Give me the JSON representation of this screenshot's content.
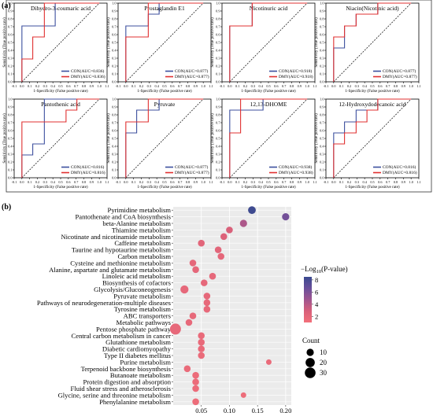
{
  "panel_a_label": "(a)",
  "panel_b_label": "(b)",
  "chart_data": [
    {
      "type": "line",
      "title": "Dihydro-3-coumaric acid",
      "xlabel": "1-Specificity (False positive rate)",
      "ylabel": "Sensitivity (True positive rate)",
      "xlim": [
        -0.1,
        1.1
      ],
      "ylim": [
        0,
        1
      ],
      "x_ticks": [
        "-0.1",
        "0.0",
        "0.1",
        "0.2",
        "0.3",
        "0.4",
        "0.5",
        "0.6",
        "0.7",
        "0.8",
        "0.9",
        "1.0",
        "1.1"
      ],
      "y_ticks": [
        "0.0",
        "0.1",
        "0.2",
        "0.3",
        "0.4",
        "0.5",
        "0.6",
        "0.7",
        "0.8",
        "0.9",
        "1.0"
      ],
      "series": [
        {
          "name": "CON(AUC=0.836)",
          "color": "#3c4f9e",
          "points": [
            [
              0,
              0
            ],
            [
              0,
              0.71
            ],
            [
              0.43,
              0.71
            ],
            [
              0.43,
              1
            ],
            [
              1,
              1
            ]
          ]
        },
        {
          "name": "DMY(AUC=0.836)",
          "color": "#e03030",
          "points": [
            [
              0,
              0
            ],
            [
              0,
              0.29
            ],
            [
              0.14,
              0.29
            ],
            [
              0.14,
              0.57
            ],
            [
              0.29,
              0.57
            ],
            [
              0.29,
              0.86
            ],
            [
              0.29,
              1
            ],
            [
              1,
              1
            ]
          ]
        }
      ]
    },
    {
      "type": "line",
      "title": "Prostaglandin E1",
      "xlabel": "1-Specificity (False positive rate)",
      "ylabel": "Sensitivity (True positive rate)",
      "xlim": [
        -0.1,
        1.1
      ],
      "ylim": [
        0,
        1
      ],
      "x_ticks": [
        "-0.1",
        "0.0",
        "0.1",
        "0.2",
        "0.3",
        "0.4",
        "0.5",
        "0.6",
        "0.7",
        "0.8",
        "0.9",
        "1.0",
        "1.1"
      ],
      "y_ticks": [
        "0.0",
        "0.1",
        "0.2",
        "0.3",
        "0.4",
        "0.5",
        "0.6",
        "0.7",
        "0.8",
        "0.9",
        "1.0"
      ],
      "series": [
        {
          "name": "CON(AUC=0.877)",
          "color": "#3c4f9e",
          "points": [
            [
              0,
              0
            ],
            [
              0,
              0.71
            ],
            [
              0.29,
              0.71
            ],
            [
              0.29,
              0.86
            ],
            [
              0.43,
              0.86
            ],
            [
              0.43,
              1
            ],
            [
              1,
              1
            ]
          ]
        },
        {
          "name": "DMY(AUC=0.877)",
          "color": "#e03030",
          "points": [
            [
              0,
              0
            ],
            [
              0,
              0.57
            ],
            [
              0.29,
              0.57
            ],
            [
              0.29,
              1
            ],
            [
              1,
              1
            ]
          ]
        }
      ]
    },
    {
      "type": "line",
      "title": "Nicotinuric acid",
      "xlabel": "1-Specificity (False positive rate)",
      "ylabel": "Sensitivity (True positive rate)",
      "xlim": [
        -0.1,
        1.1
      ],
      "ylim": [
        0,
        1
      ],
      "x_ticks": [
        "-0.1",
        "0.0",
        "0.1",
        "0.2",
        "0.3",
        "0.4",
        "0.5",
        "0.6",
        "0.7",
        "0.8",
        "0.9",
        "1.0",
        "1.1"
      ],
      "y_ticks": [
        "0.0",
        "0.1",
        "0.2",
        "0.3",
        "0.4",
        "0.5",
        "0.6",
        "0.7",
        "0.8",
        "0.9",
        "1.0"
      ],
      "series": [
        {
          "name": "CON(AUC=0.918)",
          "color": "#3c4f9e",
          "points": [
            [
              0,
              0
            ],
            [
              0,
              0.71
            ],
            [
              0.29,
              0.71
            ],
            [
              0.29,
              1
            ],
            [
              1,
              1
            ]
          ]
        },
        {
          "name": "DMY(AUC=0.918)",
          "color": "#e03030",
          "points": [
            [
              0,
              0
            ],
            [
              0,
              0.71
            ],
            [
              0.29,
              0.71
            ],
            [
              0.29,
              1
            ],
            [
              1,
              1
            ]
          ]
        }
      ]
    },
    {
      "type": "line",
      "title": "Niacin(Nicotinic acid)",
      "xlabel": "1-Specificity (False positive rate)",
      "ylabel": "Sensitivity (True positive rate)",
      "xlim": [
        -0.1,
        1.1
      ],
      "ylim": [
        0,
        1
      ],
      "x_ticks": [
        "-0.1",
        "0.0",
        "0.1",
        "0.2",
        "0.3",
        "0.4",
        "0.5",
        "0.6",
        "0.7",
        "0.8",
        "0.9",
        "1.0",
        "1.1"
      ],
      "y_ticks": [
        "0.0",
        "0.1",
        "0.2",
        "0.3",
        "0.4",
        "0.5",
        "0.6",
        "0.7",
        "0.8",
        "0.9",
        "1.0"
      ],
      "series": [
        {
          "name": "CON(AUC=0.877)",
          "color": "#3c4f9e",
          "points": [
            [
              0,
              0
            ],
            [
              0,
              0.43
            ],
            [
              0.14,
              0.43
            ],
            [
              0.14,
              0.71
            ],
            [
              0.29,
              0.71
            ],
            [
              0.29,
              0.86
            ],
            [
              0.57,
              0.86
            ],
            [
              0.57,
              1
            ],
            [
              1,
              1
            ]
          ]
        },
        {
          "name": "DMY(AUC=0.877)",
          "color": "#e03030",
          "points": [
            [
              0,
              0
            ],
            [
              0,
              0.57
            ],
            [
              0.14,
              0.57
            ],
            [
              0.14,
              0.71
            ],
            [
              0.29,
              0.71
            ],
            [
              0.29,
              0.86
            ],
            [
              0.57,
              0.86
            ],
            [
              0.57,
              1
            ],
            [
              1,
              1
            ]
          ]
        }
      ]
    },
    {
      "type": "line",
      "title": "Pantothenic acid",
      "xlabel": "1-Specificity (False positive rate)",
      "ylabel": "Sensitivity (True positive rate)",
      "xlim": [
        -0.1,
        1.1
      ],
      "ylim": [
        0,
        1
      ],
      "x_ticks": [
        "-0.1",
        "0.0",
        "0.1",
        "0.2",
        "0.3",
        "0.4",
        "0.5",
        "0.6",
        "0.7",
        "0.8",
        "0.9",
        "1.0",
        "1.1"
      ],
      "y_ticks": [
        "0.0",
        "0.1",
        "0.2",
        "0.3",
        "0.4",
        "0.5",
        "0.6",
        "0.7",
        "0.8",
        "0.9",
        "1.0"
      ],
      "series": [
        {
          "name": "CON(AUC=0.816)",
          "color": "#3c4f9e",
          "points": [
            [
              0,
              0
            ],
            [
              0,
              0.29
            ],
            [
              0.14,
              0.29
            ],
            [
              0.14,
              0.43
            ],
            [
              0.29,
              0.43
            ],
            [
              0.29,
              1
            ],
            [
              1,
              1
            ]
          ]
        },
        {
          "name": "DMY(AUC=0.816)",
          "color": "#e03030",
          "points": [
            [
              0,
              0
            ],
            [
              0,
              0.71
            ],
            [
              0.57,
              0.71
            ],
            [
              0.57,
              0.86
            ],
            [
              0.71,
              0.86
            ],
            [
              0.71,
              1
            ],
            [
              1,
              1
            ]
          ]
        }
      ]
    },
    {
      "type": "line",
      "title": "Pyruvate",
      "xlabel": "1-Specificity (False positive rate)",
      "ylabel": "Sensitivity (True positive rate)",
      "xlim": [
        -0.1,
        1.1
      ],
      "ylim": [
        0,
        1
      ],
      "x_ticks": [
        "-0.1",
        "0.0",
        "0.1",
        "0.2",
        "0.3",
        "0.4",
        "0.5",
        "0.6",
        "0.7",
        "0.8",
        "0.9",
        "1.0",
        "1.1"
      ],
      "y_ticks": [
        "0.0",
        "0.1",
        "0.2",
        "0.3",
        "0.4",
        "0.5",
        "0.6",
        "0.7",
        "0.8",
        "0.9",
        "1.0"
      ],
      "series": [
        {
          "name": "CON(AUC=0.877)",
          "color": "#3c4f9e",
          "points": [
            [
              0,
              0
            ],
            [
              0,
              0.57
            ],
            [
              0.14,
              0.57
            ],
            [
              0.14,
              0.86
            ],
            [
              0.43,
              0.86
            ],
            [
              0.43,
              1
            ],
            [
              1,
              1
            ]
          ]
        },
        {
          "name": "DMY(AUC=0.877)",
          "color": "#e03030",
          "points": [
            [
              0,
              0
            ],
            [
              0,
              0.71
            ],
            [
              0.29,
              0.71
            ],
            [
              0.29,
              1
            ],
            [
              1,
              1
            ]
          ]
        }
      ]
    },
    {
      "type": "line",
      "title": "12,13-DHOME",
      "xlabel": "1-Specificity (False positive rate)",
      "ylabel": "Sensitivity (True positive rate)",
      "xlim": [
        -0.1,
        1.1
      ],
      "ylim": [
        0,
        1
      ],
      "x_ticks": [
        "-0.1",
        "0.0",
        "0.1",
        "0.2",
        "0.3",
        "0.4",
        "0.5",
        "0.6",
        "0.7",
        "0.8",
        "0.9",
        "1.0",
        "1.1"
      ],
      "y_ticks": [
        "0.0",
        "0.1",
        "0.2",
        "0.3",
        "0.4",
        "0.5",
        "0.6",
        "0.7",
        "0.8",
        "0.9",
        "1.0"
      ],
      "series": [
        {
          "name": "CON(AUC=0.938)",
          "color": "#3c4f9e",
          "points": [
            [
              0,
              0
            ],
            [
              0,
              0.86
            ],
            [
              0.43,
              0.86
            ],
            [
              0.43,
              1
            ],
            [
              1,
              1
            ]
          ]
        },
        {
          "name": "DMY(AUC=0.938)",
          "color": "#e03030",
          "points": [
            [
              0,
              0
            ],
            [
              0,
              0.57
            ],
            [
              0.14,
              0.57
            ],
            [
              0.14,
              1
            ],
            [
              1,
              1
            ]
          ]
        }
      ]
    },
    {
      "type": "line",
      "title": "12-Hydroxydodecanoic acid",
      "xlabel": "1-Specificity (False positive rate)",
      "ylabel": "Sensitivity (True positive rate)",
      "xlim": [
        -0.1,
        1.1
      ],
      "ylim": [
        0,
        1
      ],
      "x_ticks": [
        "-0.1",
        "0.0",
        "0.1",
        "0.2",
        "0.3",
        "0.4",
        "0.5",
        "0.6",
        "0.7",
        "0.8",
        "0.9",
        "1.0",
        "1.1"
      ],
      "y_ticks": [
        "0.0",
        "0.1",
        "0.2",
        "0.3",
        "0.4",
        "0.5",
        "0.6",
        "0.7",
        "0.8",
        "0.9",
        "1.0"
      ],
      "series": [
        {
          "name": "CON(AUC=0.816)",
          "color": "#3c4f9e",
          "points": [
            [
              0,
              0
            ],
            [
              0,
              0.57
            ],
            [
              0.14,
              0.57
            ],
            [
              0.14,
              0.71
            ],
            [
              0.29,
              0.71
            ],
            [
              0.29,
              0.86
            ],
            [
              0.57,
              0.86
            ],
            [
              0.57,
              1
            ],
            [
              1,
              1
            ]
          ]
        },
        {
          "name": "DMY(AUC=0.816)",
          "color": "#e03030",
          "points": [
            [
              0,
              0
            ],
            [
              0,
              0.43
            ],
            [
              0.14,
              0.43
            ],
            [
              0.14,
              0.57
            ],
            [
              0.29,
              0.57
            ],
            [
              0.29,
              0.71
            ],
            [
              0.43,
              0.71
            ],
            [
              0.43,
              0.86
            ],
            [
              0.57,
              0.86
            ],
            [
              0.57,
              1
            ],
            [
              1,
              1
            ]
          ]
        }
      ]
    },
    {
      "type": "scatter",
      "title": "",
      "xlabel": "",
      "ylabel": "",
      "xlim": [
        0,
        0.21
      ],
      "x_ticks": [
        0.05,
        0.1,
        0.15,
        0.2
      ],
      "x_tick_labels": [
        "0.05",
        "0.10",
        "0.15",
        "0.20"
      ],
      "color_legend": {
        "title_prefix": "−Log",
        "title_sub": "10",
        "title_suffix": "(P-value)",
        "ticks": [
          "8",
          "6",
          "4",
          "2"
        ],
        "range": [
          1,
          8.5
        ],
        "colors": [
          "#3a4a8f",
          "#6a4f9a",
          "#a0558f",
          "#d8607a",
          "#f3707a"
        ]
      },
      "size_legend": {
        "title": "Count",
        "items": [
          {
            "label": "10",
            "value": 10
          },
          {
            "label": "20",
            "value": 20
          },
          {
            "label": "30",
            "value": 30
          }
        ]
      },
      "points": [
        {
          "term": "Pyrimidine metabolism",
          "x": 0.14,
          "logp": 8.3,
          "count": 12
        },
        {
          "term": "Pantothenate and CoA biosynthesis",
          "x": 0.2,
          "logp": 6.3,
          "count": 10
        },
        {
          "term": "beta-Alanine metabolism",
          "x": 0.125,
          "logp": 4.3,
          "count": 10
        },
        {
          "term": "Thiamine metabolism",
          "x": 0.1,
          "logp": 2.8,
          "count": 8
        },
        {
          "term": "Nicotinate and nicotinamide metabolism",
          "x": 0.09,
          "logp": 2.5,
          "count": 8
        },
        {
          "term": "Caffeine metabolism",
          "x": 0.05,
          "logp": 2.2,
          "count": 8
        },
        {
          "term": "Taurine and hypotaurine metabolism",
          "x": 0.08,
          "logp": 2.2,
          "count": 8
        },
        {
          "term": "Carbon metabolism",
          "x": 0.085,
          "logp": 2.0,
          "count": 8
        },
        {
          "term": "Cysteine and methionine metabolism",
          "x": 0.035,
          "logp": 2.0,
          "count": 8
        },
        {
          "term": "Alanine, aspartate and glutamate metabolism",
          "x": 0.04,
          "logp": 2.0,
          "count": 8
        },
        {
          "term": "Linoleic acid metabolism",
          "x": 0.07,
          "logp": 1.9,
          "count": 8
        },
        {
          "term": "Biosynthesis of cofactors",
          "x": 0.055,
          "logp": 1.9,
          "count": 8
        },
        {
          "term": "Glycolysis/Gluconeogenesis",
          "x": 0.02,
          "logp": 1.9,
          "count": 14
        },
        {
          "term": "Pyruvate metabolism",
          "x": 0.06,
          "logp": 1.9,
          "count": 8
        },
        {
          "term": "Pathways of neurodegeneration-multiple diseases",
          "x": 0.06,
          "logp": 1.8,
          "count": 8
        },
        {
          "term": "Tyrosine metabolism",
          "x": 0.06,
          "logp": 1.8,
          "count": 8
        },
        {
          "term": "ABC transporters",
          "x": 0.035,
          "logp": 1.8,
          "count": 8
        },
        {
          "term": "Metabolic pathways",
          "x": 0.028,
          "logp": 1.8,
          "count": 8
        },
        {
          "term": "Pentose phosphate pathway",
          "x": 0.004,
          "logp": 1.8,
          "count": 32
        },
        {
          "term": "Central carbon metabolism in cancer",
          "x": 0.05,
          "logp": 1.7,
          "count": 8
        },
        {
          "term": "Glutathione metabolism",
          "x": 0.05,
          "logp": 1.7,
          "count": 8
        },
        {
          "term": "Diabetic cardiomyopathy",
          "x": 0.05,
          "logp": 1.7,
          "count": 8
        },
        {
          "term": "Type II diabetes mellitus",
          "x": 0.05,
          "logp": 1.6,
          "count": 8
        },
        {
          "term": "Purine metabolism",
          "x": 0.17,
          "logp": 1.6,
          "count": 4
        },
        {
          "term": "Terpenoid backbone biosynthesis",
          "x": 0.025,
          "logp": 1.6,
          "count": 8
        },
        {
          "term": "Butanoate metabolism",
          "x": 0.04,
          "logp": 1.5,
          "count": 8
        },
        {
          "term": "Protein digestion and absorption",
          "x": 0.04,
          "logp": 1.5,
          "count": 8
        },
        {
          "term": "Fluid shear stress and atherosclerosis",
          "x": 0.04,
          "logp": 1.5,
          "count": 8
        },
        {
          "term": "Glycine, serine and threonine metabolism",
          "x": 0.125,
          "logp": 1.4,
          "count": 4
        },
        {
          "term": "Phenylalanine metabolism",
          "x": 0.04,
          "logp": 1.4,
          "count": 8
        }
      ]
    }
  ]
}
